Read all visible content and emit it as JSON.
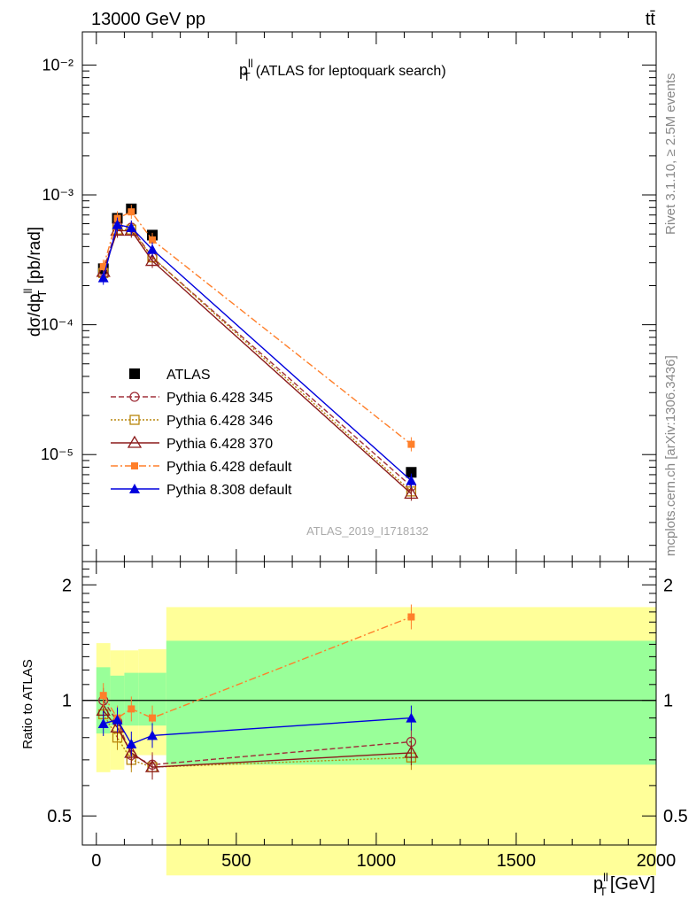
{
  "header": {
    "left": "13000 GeV pp",
    "right": "tt̄"
  },
  "side_text": {
    "rivet": "Rivet 3.1.10, ≥ 2.5M events",
    "mcplots": "mcplots.cern.ch [arXiv:1306.3436]"
  },
  "watermark": "ATLAS_2019_I1718132",
  "chart_data": [
    {
      "type": "line",
      "panel": "main",
      "title": "p_T^ll (ATLAS for leptoquark search)",
      "ylabel": "dσ/dp_T^ll [pb/rad]",
      "xlabel": "",
      "yscale": "log",
      "ylim": [
        1.5e-06,
        0.018
      ],
      "xlim": [
        -50,
        2000
      ],
      "x": [
        25,
        75,
        125,
        200,
        1125
      ],
      "y_ticks": [
        "10⁻²",
        "10⁻³",
        "10⁻⁴",
        "10⁻⁵"
      ],
      "legend_placement": "lower-left",
      "series": [
        {
          "name": "ATLAS",
          "color": "#000000",
          "marker": "square",
          "line": "none",
          "values": [
            0.00027,
            0.00066,
            0.00078,
            0.00049,
            7.3e-06
          ]
        },
        {
          "name": "Pythia 6.428 345",
          "color": "#a0303a",
          "marker": "open-circle",
          "line": "dashed",
          "values": [
            0.00026,
            0.00058,
            0.00056,
            0.00033,
            5.7e-06
          ]
        },
        {
          "name": "Pythia 6.428 346",
          "color": "#b8860b",
          "marker": "open-square",
          "line": "dotted",
          "values": [
            0.00025,
            0.00054,
            0.00054,
            0.00033,
            5.2e-06
          ]
        },
        {
          "name": "Pythia 6.428 370",
          "color": "#8b1a1a",
          "marker": "open-triangle",
          "line": "solid",
          "values": [
            0.000255,
            0.00053,
            0.00053,
            0.00031,
            5e-06
          ]
        },
        {
          "name": "Pythia 6.428 default",
          "color": "#ff7f2a",
          "marker": "small-square",
          "line": "dashdot",
          "values": [
            0.00028,
            0.00066,
            0.00074,
            0.00045,
            1.2e-05
          ]
        },
        {
          "name": "Pythia 8.308 default",
          "color": "#0000dd",
          "marker": "triangle",
          "line": "solid",
          "values": [
            0.00023,
            0.00059,
            0.00056,
            0.00038,
            6.3e-06
          ]
        }
      ]
    },
    {
      "type": "line",
      "panel": "ratio",
      "ylabel": "Ratio to ATLAS",
      "xlabel": "p_T^ll [GeV]",
      "ylim": [
        0.42,
        2.3
      ],
      "xlim": [
        -50,
        2000
      ],
      "y_ticks": [
        "2",
        "1",
        "0.5"
      ],
      "x_ticks": [
        "0",
        "500",
        "1000",
        "1500",
        "2000"
      ],
      "uncertainty_bands": {
        "bins": [
          [
            0,
            50
          ],
          [
            50,
            100
          ],
          [
            100,
            150
          ],
          [
            150,
            250
          ],
          [
            250,
            2000
          ]
        ],
        "inner": [
          [
            0.82,
            1.22
          ],
          [
            0.86,
            1.16
          ],
          [
            0.86,
            1.18
          ],
          [
            0.86,
            1.18
          ],
          [
            0.68,
            1.43
          ]
        ],
        "outer": [
          [
            0.65,
            1.41
          ],
          [
            0.66,
            1.35
          ],
          [
            0.72,
            1.35
          ],
          [
            0.72,
            1.36
          ],
          [
            0.35,
            1.75
          ]
        ]
      },
      "series": [
        {
          "name": "Pythia 6.428 345",
          "values": [
            1.0,
            0.88,
            0.72,
            0.68,
            0.78
          ]
        },
        {
          "name": "Pythia 6.428 346",
          "values": [
            0.92,
            0.8,
            0.7,
            0.67,
            0.71
          ]
        },
        {
          "name": "Pythia 6.428 370",
          "values": [
            0.94,
            0.85,
            0.73,
            0.67,
            0.73
          ]
        },
        {
          "name": "Pythia 6.428 default",
          "values": [
            1.03,
            0.9,
            0.95,
            0.9,
            1.65
          ]
        },
        {
          "name": "Pythia 8.308 default",
          "values": [
            0.87,
            0.89,
            0.77,
            0.81,
            0.9
          ]
        }
      ]
    }
  ]
}
